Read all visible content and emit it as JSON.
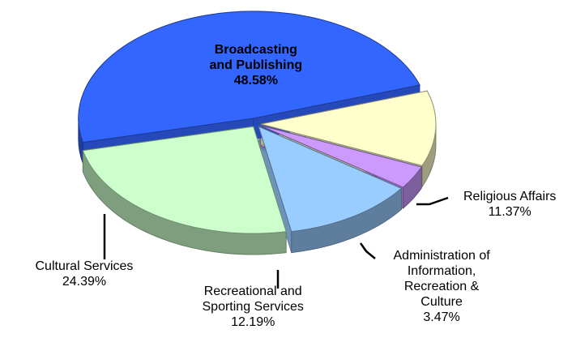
{
  "chart_data": {
    "type": "pie",
    "style": "3d-exploded",
    "slices": [
      {
        "name": "Broadcasting and Publishing",
        "label_lines": [
          "Broadcasting",
          "and Publishing"
        ],
        "value": 48.58,
        "value_text": "48.58%",
        "color": "#3366ff"
      },
      {
        "name": "Religious Affairs",
        "label_lines": [
          "Religious Affairs"
        ],
        "value": 11.37,
        "value_text": "11.37%",
        "color": "#ffffcc"
      },
      {
        "name": "Administration of Information, Recreation & Culture",
        "label_lines": [
          "Administration of",
          "Information,",
          "Recreation &",
          "Culture"
        ],
        "value": 3.47,
        "value_text": "3.47%",
        "color": "#cc99ff"
      },
      {
        "name": "Recreational and Sporting Services",
        "label_lines": [
          "Recreational and",
          "Sporting Services"
        ],
        "value": 12.19,
        "value_text": "12.19%",
        "color": "#99ccff"
      },
      {
        "name": "Cultural Services",
        "label_lines": [
          "Cultural  Services"
        ],
        "value": 24.39,
        "value_text": "24.39%",
        "color": "#ccffcc"
      }
    ]
  }
}
